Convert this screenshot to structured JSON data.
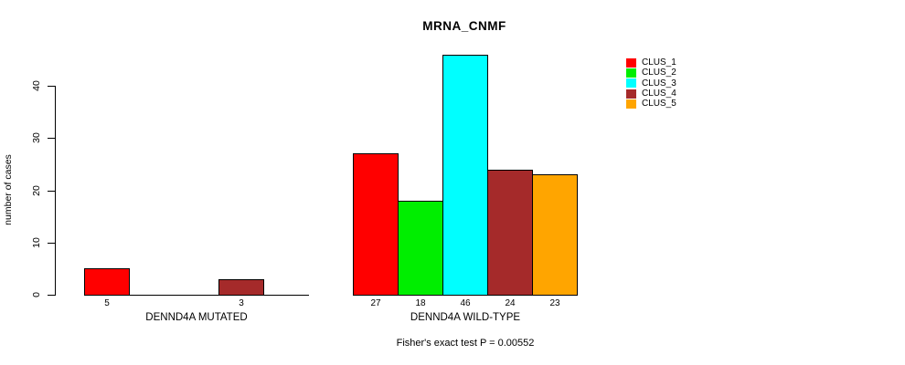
{
  "figure": {
    "title": "MRNA_CNMF",
    "ylabel": "number of cases",
    "footer": "Fisher's exact test P = 0.00552"
  },
  "chart_data": {
    "type": "bar",
    "title": "MRNA_CNMF",
    "xlabel": "",
    "ylabel": "number of cases",
    "ylim": [
      0,
      46
    ],
    "yticks": [
      0,
      10,
      20,
      30,
      40
    ],
    "grid": false,
    "legend_position": "top-right",
    "clusters": [
      {
        "name": "CLUS_1",
        "color": "#ff0000"
      },
      {
        "name": "CLUS_2",
        "color": "#00ee00"
      },
      {
        "name": "CLUS_3",
        "color": "#00ffff"
      },
      {
        "name": "CLUS_4",
        "color": "#a52a2a"
      },
      {
        "name": "CLUS_5",
        "color": "#ffa500"
      }
    ],
    "groups": [
      {
        "label": "DENND4A MUTATED",
        "values": [
          5,
          0,
          0,
          3,
          0
        ]
      },
      {
        "label": "DENND4A WILD-TYPE",
        "values": [
          27,
          18,
          46,
          24,
          23
        ]
      }
    ],
    "bar_value_labels": "shown below nonzero bars",
    "annotation": "Fisher's exact test P = 0.00552"
  }
}
